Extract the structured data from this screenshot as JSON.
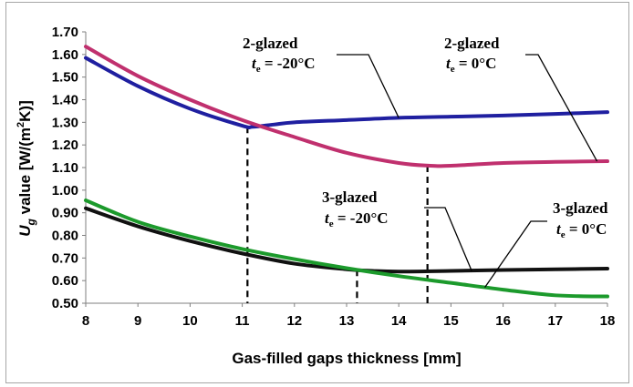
{
  "chart_data": {
    "type": "line",
    "xlabel": "Gas-filled gaps thickness [mm]",
    "ylabel": {
      "base": "U",
      "sub": "g",
      "rest": " value [W/(m",
      "sup": "2",
      "tail": "K)]"
    },
    "xlim": [
      8,
      18
    ],
    "ylim": [
      0.5,
      1.7
    ],
    "x_ticks": [
      8,
      9,
      10,
      11,
      12,
      13,
      14,
      15,
      16,
      17,
      18
    ],
    "y_ticks": [
      "0.50",
      "0.60",
      "0.70",
      "0.80",
      "0.90",
      "1.00",
      "1.10",
      "1.20",
      "1.30",
      "1.40",
      "1.50",
      "1.60",
      "1.70"
    ],
    "grid": false,
    "series": [
      {
        "key": "g2_m20",
        "color": "#1f1fa0",
        "x": [
          8,
          9,
          10,
          11,
          11.2,
          11.6,
          12,
          13,
          14,
          15,
          16,
          17,
          18
        ],
        "y": [
          1.585,
          1.46,
          1.36,
          1.285,
          1.28,
          1.29,
          1.3,
          1.31,
          1.32,
          1.325,
          1.33,
          1.337,
          1.345
        ]
      },
      {
        "key": "g2_0",
        "color": "#c0306e",
        "x": [
          8,
          9,
          10,
          11,
          12,
          13,
          14,
          14.6,
          15,
          16,
          17,
          18
        ],
        "y": [
          1.635,
          1.505,
          1.4,
          1.31,
          1.235,
          1.165,
          1.12,
          1.108,
          1.108,
          1.12,
          1.125,
          1.128
        ]
      },
      {
        "key": "g3_m20",
        "color": "#111111",
        "x": [
          8,
          9,
          10,
          11,
          12,
          13,
          13.5,
          14,
          15,
          16,
          17,
          18
        ],
        "y": [
          0.92,
          0.84,
          0.775,
          0.72,
          0.675,
          0.65,
          0.643,
          0.64,
          0.643,
          0.647,
          0.65,
          0.653
        ]
      },
      {
        "key": "g3_0",
        "color": "#1c9a2c",
        "x": [
          8,
          9,
          10,
          11,
          12,
          13,
          14,
          15,
          16,
          17,
          18
        ],
        "y": [
          0.955,
          0.86,
          0.795,
          0.74,
          0.695,
          0.655,
          0.62,
          0.59,
          0.56,
          0.535,
          0.53
        ]
      }
    ],
    "drop_lines": [
      {
        "x": 11.1,
        "y": 1.28
      },
      {
        "x": 14.55,
        "y": 1.108
      },
      {
        "x": 13.2,
        "y": 0.648
      }
    ],
    "annotations": [
      {
        "line1": "2-glazed",
        "sym": "t",
        "sub": "e",
        "rest": " = -20°C"
      },
      {
        "line1": "2-glazed",
        "sym": "t",
        "sub": "e",
        "rest": " = 0°C"
      },
      {
        "line1": "3-glazed",
        "sym": "t",
        "sub": "e",
        "rest": " = -20°C"
      },
      {
        "line1": "3-glazed",
        "sym": "t",
        "sub": "e",
        "rest": " = 0°C"
      }
    ]
  }
}
